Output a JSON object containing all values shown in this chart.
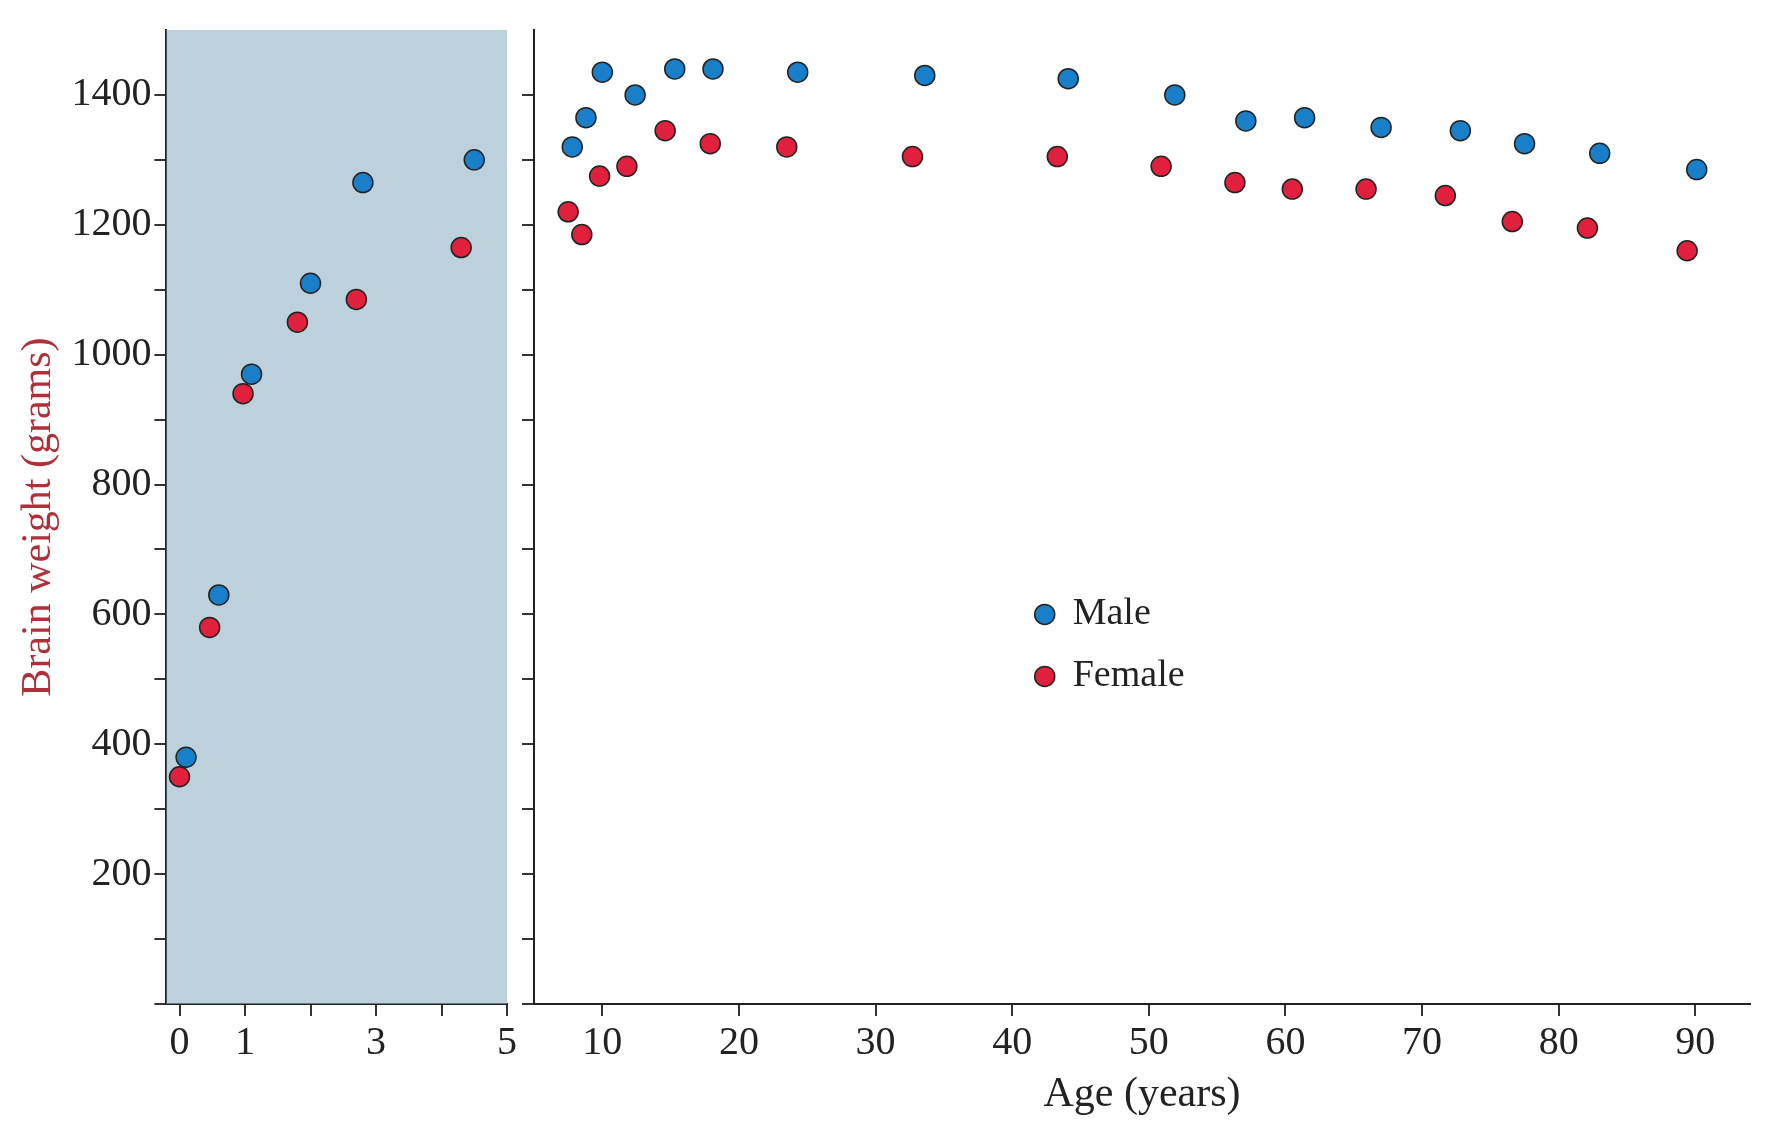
{
  "chart_data": [
    {
      "type": "scatter",
      "ylabel": "Brain weight (grams)",
      "xlim": [
        -0.2,
        5
      ],
      "ylim": [
        0,
        1500
      ],
      "xticks": [
        0,
        1,
        {
          "value": 2,
          "label": null
        },
        3,
        {
          "value": 4,
          "label": null
        },
        5
      ],
      "yticks": [
        {
          "value": 0,
          "label": null
        },
        {
          "value": 100,
          "label": null
        },
        200,
        {
          "value": 300,
          "label": null
        },
        400,
        {
          "value": 500,
          "label": null
        },
        600,
        {
          "value": 700,
          "label": null
        },
        800,
        {
          "value": 900,
          "label": null
        },
        1000,
        {
          "value": 1100,
          "label": null
        },
        1200,
        {
          "value": 1300,
          "label": null
        },
        1400
      ],
      "grid": false,
      "marker": "circle",
      "bands": [
        {
          "axis": "x",
          "from": -0.2,
          "to": 5,
          "color": "#8fb3c4"
        }
      ],
      "series": [
        {
          "color": "#1a7fc9",
          "x": [
            0.1,
            0.6,
            1.1,
            2.0,
            2.8,
            4.5
          ],
          "values": [
            380,
            630,
            970,
            1110,
            1265,
            1300
          ]
        },
        {
          "color": "#e0203c",
          "x": [
            0,
            0.46,
            0.97,
            1.8,
            2.7,
            4.3
          ],
          "values": [
            350,
            580,
            940,
            1050,
            1085,
            1165
          ]
        }
      ]
    },
    {
      "type": "scatter",
      "xlabel": "Age (years)",
      "xlim": [
        5,
        94
      ],
      "ylim": [
        0,
        1500
      ],
      "xticks": [
        10,
        20,
        30,
        40,
        50,
        60,
        70,
        80,
        90
      ],
      "yticks": [
        {
          "value": 0,
          "label": null
        },
        {
          "value": 100,
          "label": null
        },
        200,
        {
          "value": 300,
          "label": null
        },
        400,
        {
          "value": 500,
          "label": null
        },
        600,
        {
          "value": 700,
          "label": null
        },
        800,
        {
          "value": 900,
          "label": null
        },
        1000,
        {
          "value": 1100,
          "label": null
        },
        1200,
        {
          "value": 1300,
          "label": null
        },
        1400
      ],
      "tick_labels": "x",
      "grid": false,
      "legend": "center",
      "marker": "circle",
      "series": [
        {
          "name": "Male",
          "color": "#1a7fc9",
          "x": [
            7.8,
            8.8,
            10,
            12.4,
            15.3,
            18.1,
            24.3,
            33.6,
            44.1,
            51.9,
            57.1,
            61.4,
            67.0,
            72.8,
            77.5,
            83,
            90.1
          ],
          "values": [
            1320,
            1365,
            1435,
            1400,
            1440,
            1440,
            1435,
            1430,
            1425,
            1400,
            1360,
            1365,
            1350,
            1345,
            1325,
            1310,
            1285
          ]
        },
        {
          "name": "Female",
          "color": "#e0203c",
          "x": [
            7.5,
            8.5,
            9.8,
            11.8,
            14.6,
            17.9,
            23.5,
            32.7,
            43.3,
            50.9,
            56.3,
            60.5,
            65.9,
            71.7,
            76.6,
            82.1,
            89.4
          ],
          "values": [
            1220,
            1185,
            1275,
            1290,
            1345,
            1325,
            1320,
            1305,
            1305,
            1290,
            1265,
            1255,
            1255,
            1245,
            1205,
            1195,
            1160
          ]
        }
      ]
    }
  ]
}
